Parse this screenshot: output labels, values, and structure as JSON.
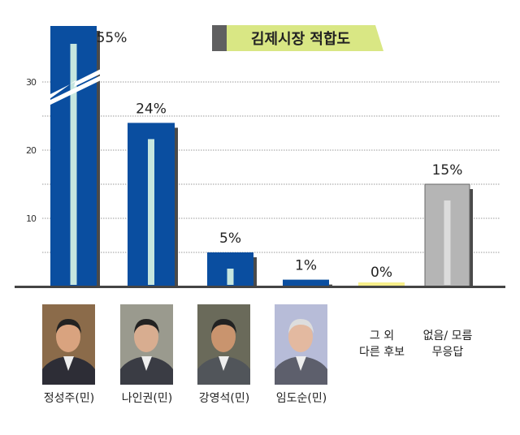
{
  "chart_data": {
    "type": "bar",
    "title": "김제시장 적합도",
    "categories": [
      "정성주(민)",
      "나인권(민)",
      "강영석(민)",
      "임도순(민)",
      "그 외 다른 후보",
      "없음/ 모름 무응답"
    ],
    "values": [
      55,
      24,
      5,
      1,
      0,
      15
    ],
    "value_labels": [
      "55%",
      "24%",
      "5%",
      "1%",
      "0%",
      "15%"
    ],
    "bar_colors": [
      "#0a4ea0",
      "#0a4ea0",
      "#0a4ea0",
      "#0a4ea0",
      "#f7ef8a",
      "#b5b5b5"
    ],
    "yticks": [
      10,
      20,
      30
    ],
    "ylim": [
      0,
      38
    ],
    "axis_break": true,
    "grid": true,
    "xlabel": "",
    "ylabel": ""
  },
  "other_label": [
    "그 외",
    "다른 후보"
  ],
  "none_label": [
    "없음/ 모름",
    "무응답"
  ]
}
